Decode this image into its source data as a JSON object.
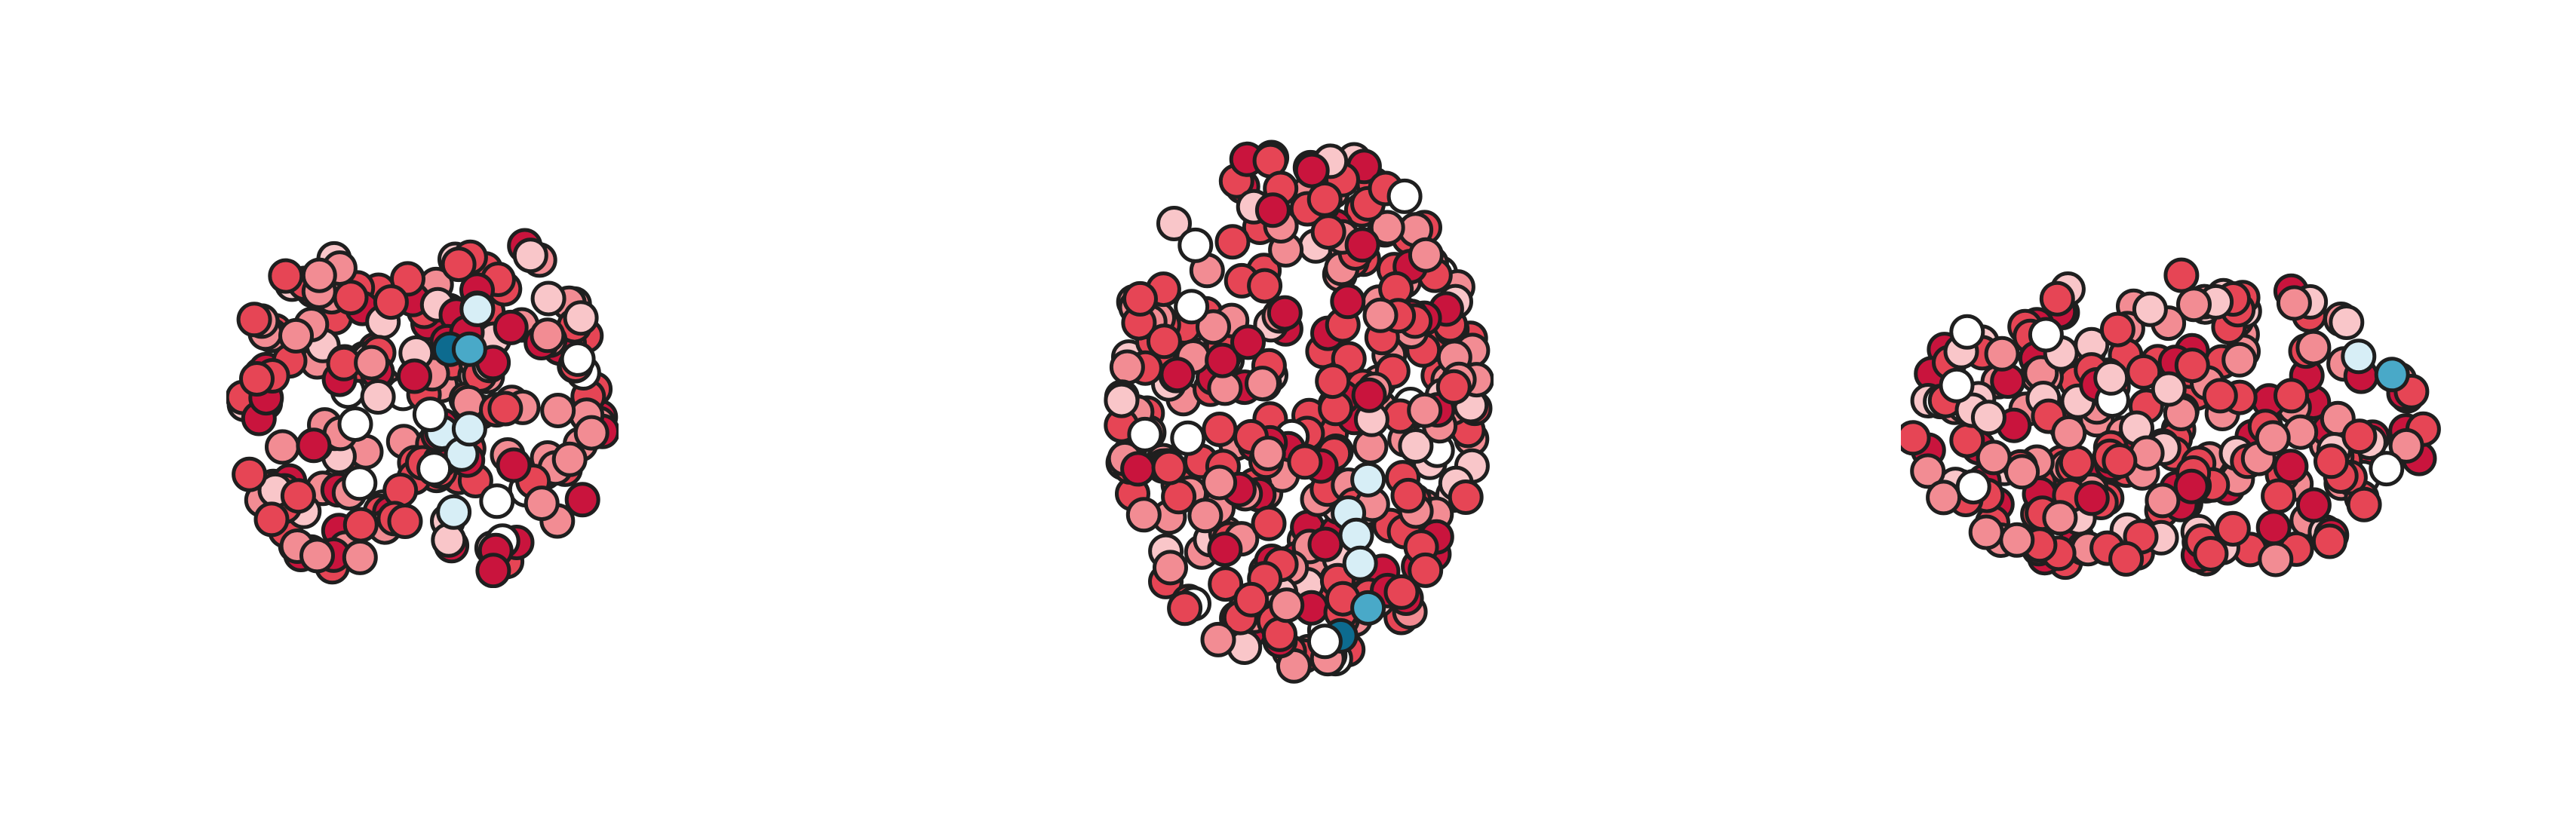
{
  "figure": {
    "views": [
      {
        "id": "coronal",
        "name": "coronal-view"
      },
      {
        "id": "axial",
        "name": "axial-view"
      },
      {
        "id": "sagittal",
        "name": "sagittal-view"
      }
    ],
    "node_style": {
      "outline_color": "#1f1f1f"
    },
    "colormap": {
      "high": "#c9143d",
      "mid_high": "#e64555",
      "mid": "#f28c93",
      "low": "#f9c6c9",
      "white": "#ffffff",
      "cool_light": "#d7eef6",
      "cool_mid": "#49a9c8",
      "cool_dark": "#0d6b8f"
    }
  }
}
